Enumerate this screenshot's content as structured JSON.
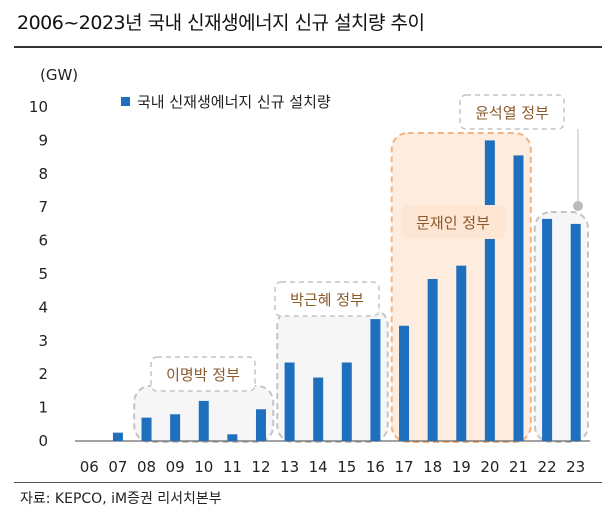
{
  "title": "2006~2023년 국내 신재생에너지 신규 설치량 추이",
  "source": "자료: KEPCO, iM증권 리서치본부",
  "colors": {
    "bar": "#1f6fbf",
    "group_stroke": "#c4c4c4",
    "group_fill": "#f6f6f6",
    "moon_stroke": "#f2b483",
    "moon_fill": "#fde6d4",
    "label_text": "#8a5a2b"
  },
  "chart_data": {
    "type": "bar",
    "title": "2006~2023년 국내 신재생에너지 신규 설치량 추이",
    "ylabel": "(GW)",
    "xlabel": "",
    "ylim": [
      0,
      10
    ],
    "yticks": [
      "0",
      "1",
      "2",
      "3",
      "4",
      "5",
      "6",
      "7",
      "8",
      "9",
      "10"
    ],
    "legend": "국내 신재생에너지 신규 설치량",
    "legend_position": "top-left",
    "categories": [
      "06",
      "07",
      "08",
      "09",
      "10",
      "11",
      "12",
      "13",
      "14",
      "15",
      "16",
      "17",
      "18",
      "19",
      "20",
      "21",
      "22",
      "23"
    ],
    "values": [
      0,
      0.25,
      0.7,
      0.8,
      1.2,
      0.2,
      0.95,
      2.35,
      1.9,
      2.35,
      3.65,
      3.45,
      4.85,
      5.25,
      9.0,
      8.55,
      6.65,
      6.5
    ],
    "groups": [
      {
        "label": "이명박 정부",
        "from": "08",
        "to": "12",
        "style": "gray"
      },
      {
        "label": "박근혜 정부",
        "from": "13",
        "to": "16",
        "style": "gray"
      },
      {
        "label": "문재인 정부",
        "from": "17",
        "to": "21",
        "style": "orange"
      },
      {
        "label": "윤석열 정부",
        "from": "22",
        "to": "23",
        "style": "gray"
      }
    ]
  }
}
